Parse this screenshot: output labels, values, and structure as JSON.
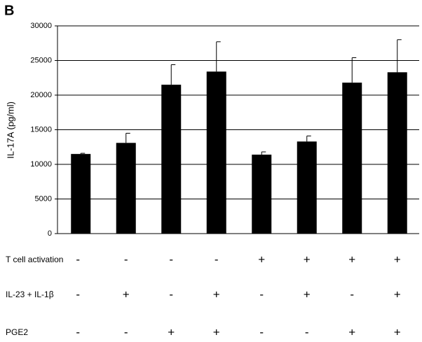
{
  "panel_label": "B",
  "chart_data": {
    "type": "bar",
    "ylabel": "IL-17A (pg/ml)",
    "color": "#000000",
    "ylim": [
      0,
      30000
    ],
    "yticks": [
      0,
      5000,
      10000,
      15000,
      20000,
      25000,
      30000
    ],
    "grid": true,
    "series": [
      {
        "values": [
          11500,
          13100,
          21500,
          23400,
          11400,
          13300,
          21800,
          23300
        ],
        "errors": [
          100,
          1400,
          2900,
          4300,
          400,
          800,
          3600,
          4700
        ]
      }
    ],
    "conditions": [
      {
        "label": "T cell activation",
        "signs": [
          "-",
          "-",
          "-",
          "-",
          "+",
          "+",
          "+",
          "+"
        ]
      },
      {
        "label": "IL-23 + IL-1β",
        "signs": [
          "-",
          "+",
          "-",
          "+",
          "-",
          "+",
          "-",
          "+"
        ]
      },
      {
        "label": "PGE2",
        "signs": [
          "-",
          "-",
          "+",
          "+",
          "-",
          "-",
          "+",
          "+"
        ]
      }
    ]
  }
}
